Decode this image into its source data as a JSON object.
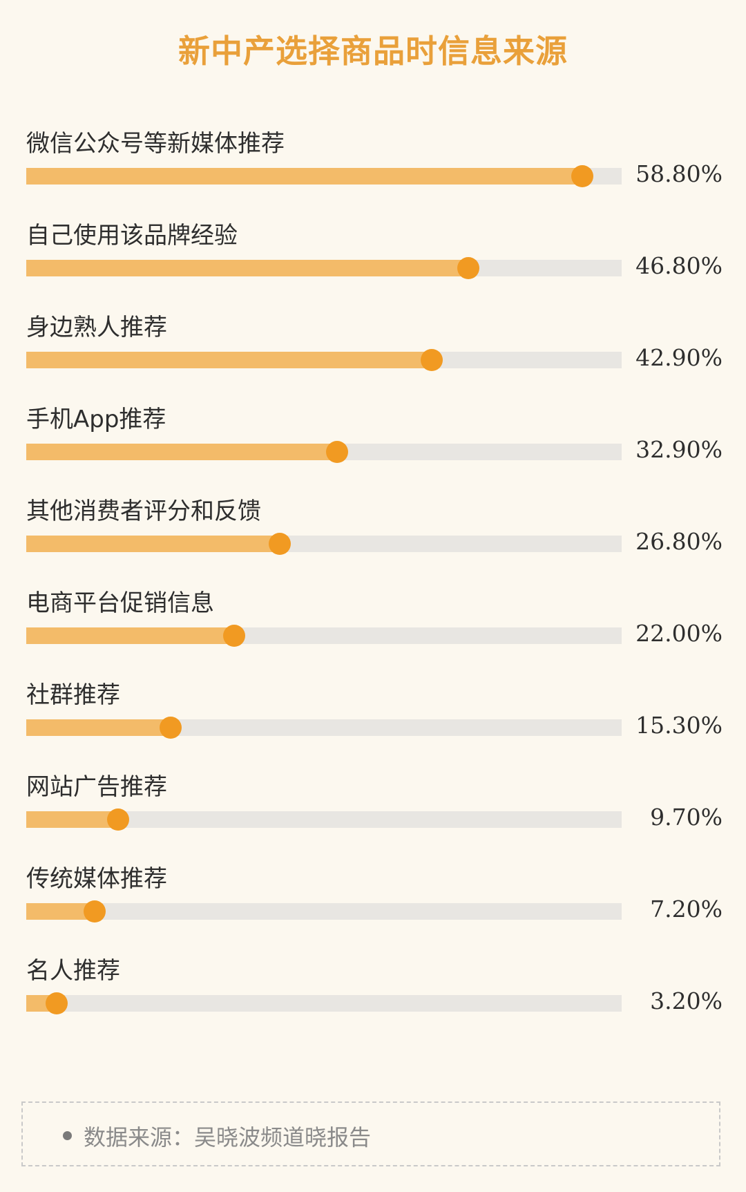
{
  "chart_data": {
    "type": "bar",
    "orientation": "horizontal",
    "title": "新中产选择商品时信息来源",
    "xlim": [
      0,
      63
    ],
    "value_suffix": "%",
    "categories": [
      "微信公众号等新媒体推荐",
      "自己使用该品牌经验",
      "身边熟人推荐",
      "手机App推荐",
      "其他消费者评分和反馈",
      "电商平台促销信息",
      "社群推荐",
      "网站广告推荐",
      "传统媒体推荐",
      "名人推荐"
    ],
    "values": [
      58.8,
      46.8,
      42.9,
      32.9,
      26.8,
      22.0,
      15.3,
      9.7,
      7.2,
      3.2
    ],
    "value_labels": [
      "58.80%",
      "46.80%",
      "42.90%",
      "32.90%",
      "26.80%",
      "22.00%",
      "15.30%",
      "9.70%",
      "7.20%",
      "3.20%"
    ],
    "colors": {
      "fill": "#f3bb69",
      "marker": "#f19a22",
      "track": "#e8e6e2",
      "title": "#e9a03a"
    }
  },
  "source": {
    "text": "数据来源：吴晓波频道晓报告"
  }
}
